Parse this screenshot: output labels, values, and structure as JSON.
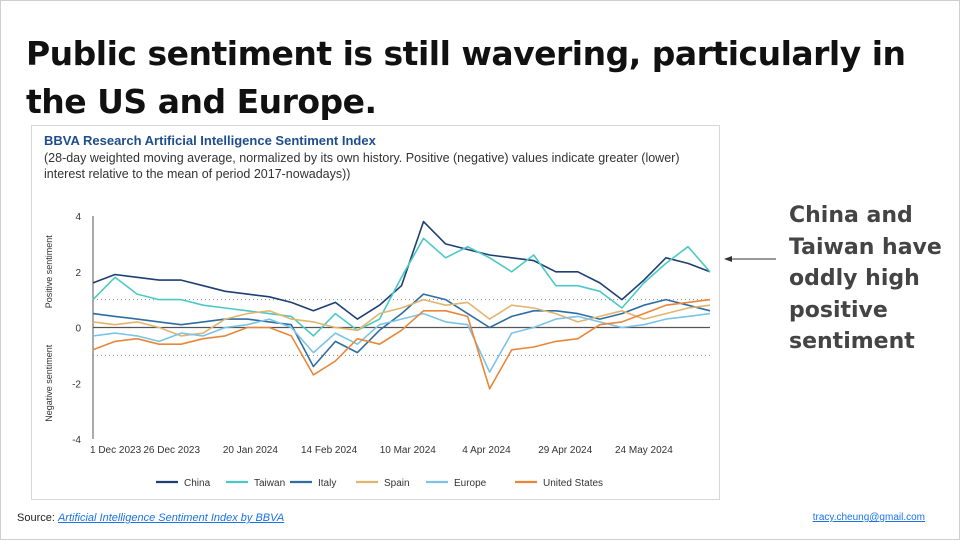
{
  "slide": {
    "title": "Public sentiment is still wavering, particularly in the US and Europe.",
    "note": "China and Taiwan have oddly high positive sentiment",
    "source_prefix": "Source: ",
    "source_link": "Artificial Intelligence Sentiment Index by BBVA",
    "email": "tracy.cheung@gmail.com"
  },
  "colors": {
    "China": "#1f3f73",
    "Taiwan": "#4cc9c4",
    "Italy": "#2e6da4",
    "Spain": "#e2b56f",
    "Europe": "#7cc3e6",
    "United States": "#e8873a"
  },
  "chart_data": {
    "type": "line",
    "title": "BBVA Research Artificial Intelligence Sentiment Index",
    "subtitle": "(28-day weighted moving average, normalized by its own history. Positive (negative) values indicate greater (lower) interest relative to the mean of period 2017-nowadays))",
    "ylabel_positive": "Positive sentiment",
    "ylabel_negative": "Negative sentiment",
    "ylim": [
      -4,
      4
    ],
    "yticks": [
      "4",
      "2",
      "0",
      "-2",
      "-4"
    ],
    "reference_lines": [
      1,
      -1
    ],
    "xlim": [
      0,
      196
    ],
    "xticks": [
      {
        "label": "1 Dec 2023",
        "day": 0
      },
      {
        "label": "26 Dec 2023",
        "day": 25
      },
      {
        "label": "20 Jan 2024",
        "day": 50
      },
      {
        "label": "14 Feb 2024",
        "day": 75
      },
      {
        "label": "10 Mar 2024",
        "day": 100
      },
      {
        "label": "4 Apr 2024",
        "day": 125
      },
      {
        "label": "29 Apr 2024",
        "day": 150
      },
      {
        "label": "24 May 2024",
        "day": 175
      }
    ],
    "x": [
      0,
      7,
      14,
      21,
      28,
      35,
      42,
      49,
      56,
      63,
      70,
      77,
      84,
      91,
      98,
      105,
      112,
      119,
      126,
      133,
      140,
      147,
      154,
      161,
      168,
      175,
      182,
      189,
      196
    ],
    "series": [
      {
        "name": "China",
        "values": [
          1.6,
          1.9,
          1.8,
          1.7,
          1.7,
          1.5,
          1.3,
          1.2,
          1.1,
          0.9,
          0.6,
          0.9,
          0.3,
          0.8,
          1.5,
          3.8,
          3.0,
          2.8,
          2.6,
          2.5,
          2.4,
          2.0,
          2.0,
          1.6,
          1.0,
          1.7,
          2.5,
          2.3,
          2.0
        ]
      },
      {
        "name": "Taiwan",
        "values": [
          1.0,
          1.8,
          1.2,
          1.0,
          1.0,
          0.8,
          0.7,
          0.6,
          0.5,
          0.4,
          -0.3,
          0.5,
          -0.1,
          0.3,
          1.8,
          3.2,
          2.5,
          2.9,
          2.5,
          2.0,
          2.6,
          1.5,
          1.5,
          1.3,
          0.7,
          1.6,
          2.3,
          2.9,
          2.0
        ]
      },
      {
        "name": "Italy",
        "values": [
          0.5,
          0.4,
          0.3,
          0.2,
          0.1,
          0.2,
          0.3,
          0.3,
          0.2,
          0.1,
          -1.4,
          -0.5,
          -0.9,
          -0.1,
          0.5,
          1.2,
          1.0,
          0.5,
          0.0,
          0.4,
          0.6,
          0.6,
          0.5,
          0.3,
          0.5,
          0.8,
          1.0,
          0.8,
          0.6
        ]
      },
      {
        "name": "Spain",
        "values": [
          0.2,
          0.1,
          0.2,
          0.0,
          -0.3,
          -0.2,
          0.3,
          0.5,
          0.6,
          0.3,
          0.2,
          0.0,
          -0.1,
          0.5,
          0.7,
          1.0,
          0.8,
          0.9,
          0.3,
          0.8,
          0.7,
          0.5,
          0.2,
          0.4,
          0.6,
          0.3,
          0.5,
          0.7,
          0.8
        ]
      },
      {
        "name": "Europe",
        "values": [
          -0.3,
          -0.2,
          -0.3,
          -0.5,
          -0.2,
          -0.3,
          0.0,
          0.1,
          0.3,
          0.0,
          -0.9,
          -0.2,
          -0.6,
          0.1,
          0.3,
          0.5,
          0.2,
          0.1,
          -1.6,
          -0.2,
          0.0,
          0.3,
          0.4,
          0.2,
          0.0,
          0.1,
          0.3,
          0.4,
          0.5
        ]
      },
      {
        "name": "United States",
        "values": [
          -0.8,
          -0.5,
          -0.4,
          -0.6,
          -0.6,
          -0.4,
          -0.3,
          0.0,
          0.0,
          -0.3,
          -1.7,
          -1.2,
          -0.4,
          -0.6,
          -0.1,
          0.6,
          0.6,
          0.4,
          -2.2,
          -0.8,
          -0.7,
          -0.5,
          -0.4,
          0.1,
          0.2,
          0.5,
          0.8,
          0.9,
          1.0
        ]
      }
    ]
  }
}
